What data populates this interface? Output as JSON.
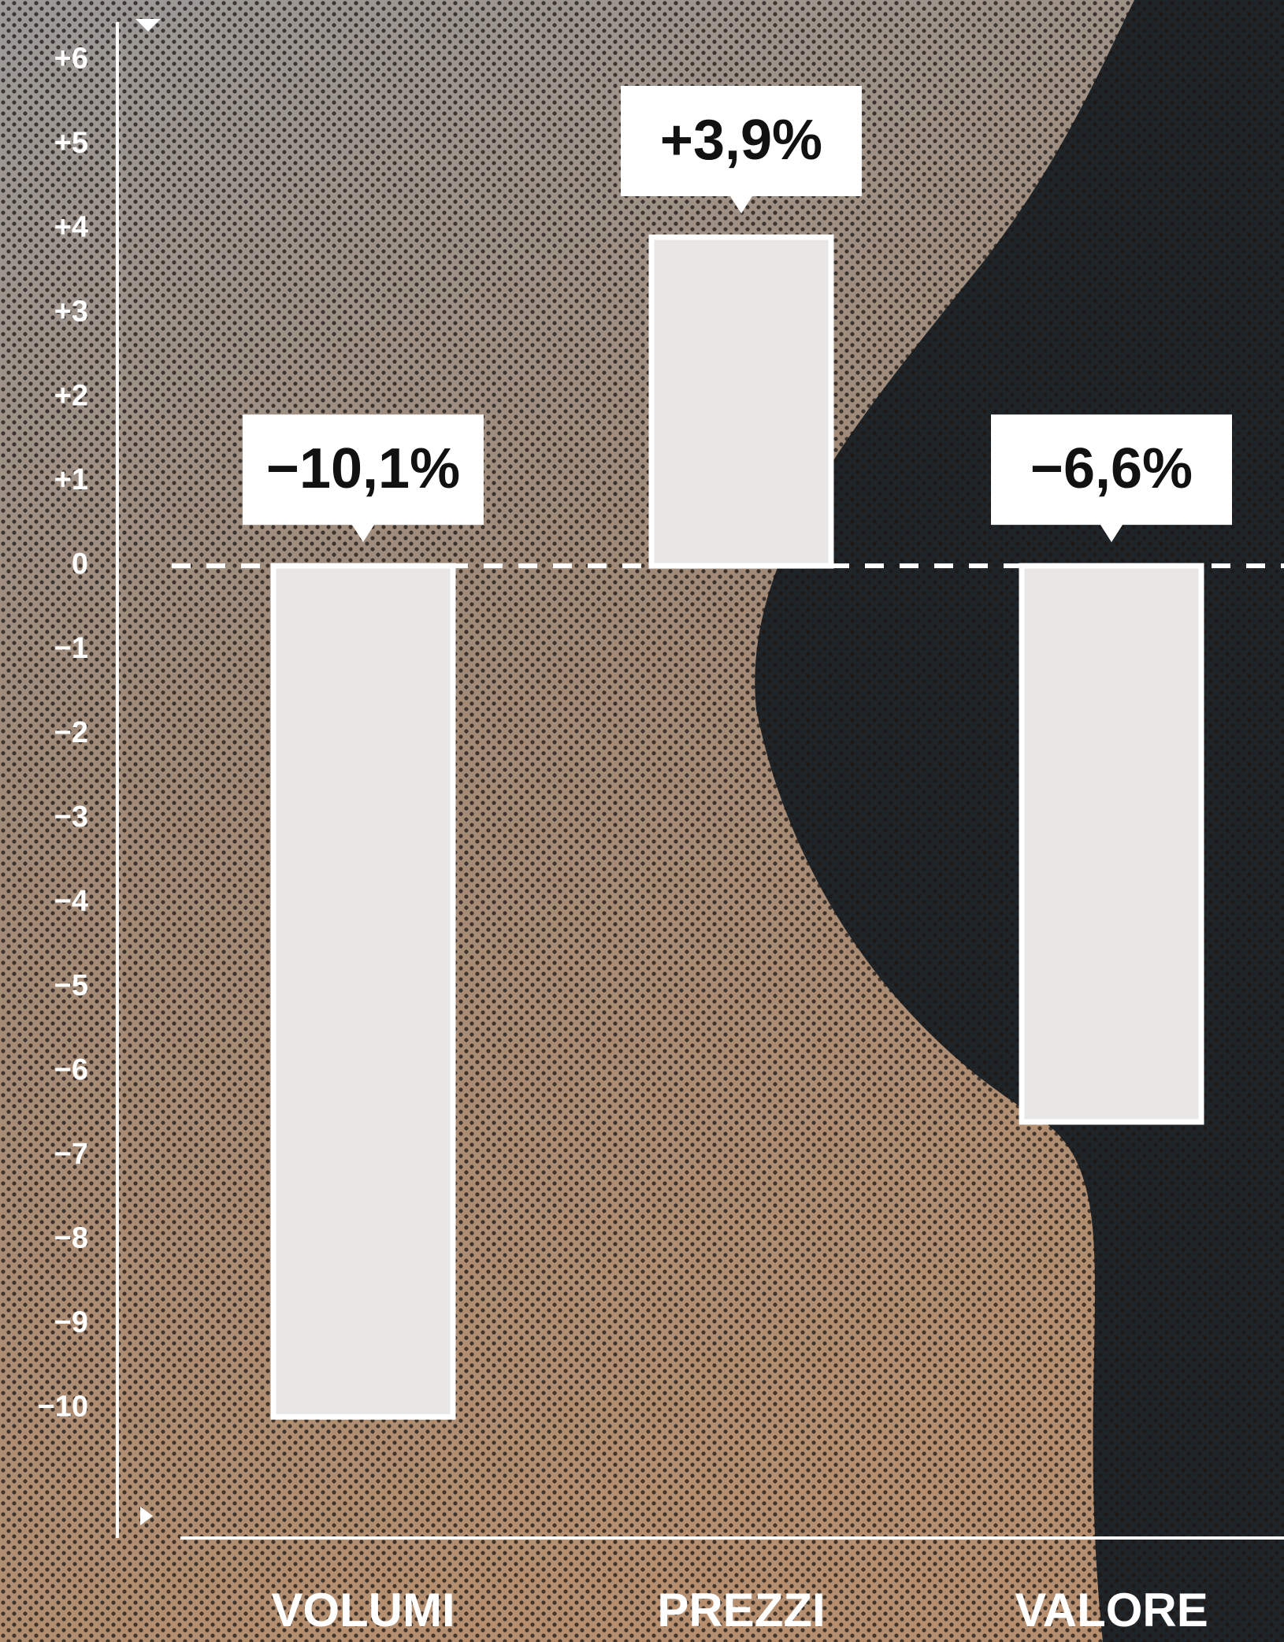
{
  "chart_data": {
    "type": "bar",
    "categories": [
      "VOLUMI",
      "PREZZI",
      "VALORE"
    ],
    "values": [
      -10.1,
      3.9,
      -6.6
    ],
    "value_labels": [
      "−10,1%",
      "+3,9%",
      "−6,6%"
    ],
    "color": "#e9e7e5",
    "ylim": [
      -11.5,
      6.5
    ],
    "yticks": [
      {
        "value": 6,
        "label": "+6"
      },
      {
        "value": 5,
        "label": "+5"
      },
      {
        "value": 4,
        "label": "+4"
      },
      {
        "value": 3,
        "label": "+3"
      },
      {
        "value": 2,
        "label": "+2"
      },
      {
        "value": 1,
        "label": "+1"
      },
      0,
      {
        "value": -1,
        "label": "−1"
      },
      {
        "value": -2,
        "label": "−2"
      },
      {
        "value": -3,
        "label": "−3"
      },
      {
        "value": -4,
        "label": "−4"
      },
      {
        "value": -5,
        "label": "−5"
      },
      {
        "value": -6,
        "label": "−6"
      },
      {
        "value": -7,
        "label": "−7"
      },
      {
        "value": -8,
        "label": "−8"
      },
      {
        "value": -9,
        "label": "−9"
      },
      {
        "value": -10,
        "label": "−10"
      }
    ],
    "grid": false
  }
}
